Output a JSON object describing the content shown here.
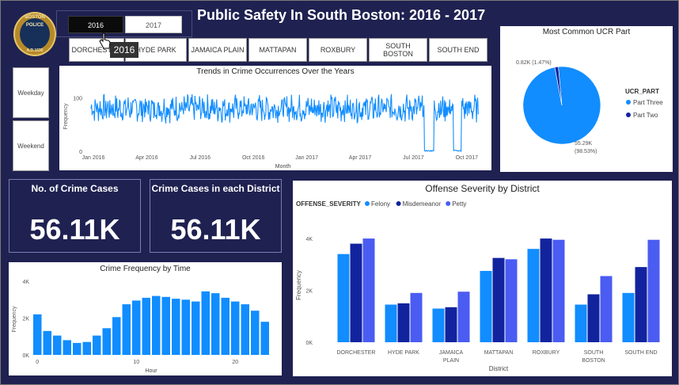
{
  "logo": {
    "top": "BOSTON",
    "mid": "POLICE",
    "date": "A.D.1630"
  },
  "title": "Public Safety In South Boston: 2016 - 2017",
  "years": {
    "selected": "2016",
    "other": "2017",
    "tooltip": "2016"
  },
  "districts": [
    "DORCHESTER",
    "HYDE PARK",
    "JAMAICA PLAIN",
    "MATTAPAN",
    "ROXBURY",
    "SOUTH BOSTON",
    "SOUTH END"
  ],
  "day_filters": [
    "Weekday",
    "Weekend"
  ],
  "cards": {
    "crime_cases": {
      "label": "No. of Crime Cases",
      "value": "56.11K"
    },
    "district_cases": {
      "label": "Crime Cases in each District",
      "value": "56.11K"
    }
  },
  "chart_data": [
    {
      "type": "line",
      "title": "Trends in Crime Occurrences Over the Years",
      "xlabel": "Month",
      "ylabel": "Frequency",
      "yticks": [
        "0",
        "100"
      ],
      "ylim": [
        0,
        130
      ],
      "xticks": [
        "Jan 2016",
        "Apr 2016",
        "Jul 2016",
        "Oct 2016",
        "Jan 2017",
        "Apr 2017",
        "Jul 2017",
        "Oct 2017"
      ],
      "series": [
        {
          "name": "Frequency",
          "color": "#118dff",
          "baseline": 80,
          "dips": [
            {
              "from": 0.86,
              "to": 0.885,
              "value": 0
            },
            {
              "from": 0.935,
              "to": 0.955,
              "value": 0
            }
          ]
        }
      ]
    },
    {
      "type": "pie",
      "title": "Most Common UCR Part",
      "legend_title": "UCR_PART",
      "slices": [
        {
          "name": "Part Three",
          "value": 55.29,
          "label": "55.29K",
          "pct": "(98.53%)",
          "color": "#118dff"
        },
        {
          "name": "Part Two",
          "value": 0.82,
          "label": "0.82K",
          "pct": "(1.47%)",
          "color": "#12239e"
        }
      ]
    },
    {
      "type": "bar",
      "title": "Crime Frequency by Time",
      "xlabel": "Hour",
      "ylabel": "Frequency",
      "ylim": [
        0,
        4000
      ],
      "yticks": [
        "0K",
        "2K",
        "4K"
      ],
      "xticks": [
        "0",
        "10",
        "20"
      ],
      "x": [
        0,
        1,
        2,
        3,
        4,
        5,
        6,
        7,
        8,
        9,
        10,
        11,
        12,
        13,
        14,
        15,
        16,
        17,
        18,
        19,
        20,
        21,
        22,
        23
      ],
      "values": [
        2200,
        1300,
        1050,
        800,
        650,
        700,
        1050,
        1450,
        2050,
        2750,
        2950,
        3100,
        3200,
        3150,
        3050,
        3000,
        2900,
        3450,
        3350,
        3100,
        2900,
        2750,
        2400,
        1800
      ],
      "color": "#118dff"
    },
    {
      "type": "bar",
      "title": "Offense Severity by District",
      "legend_title": "OFFENSE_SEVERITY",
      "xlabel": "District",
      "ylabel": "Frequency",
      "ylim": [
        0,
        4400
      ],
      "yticks": [
        "0K",
        "2K",
        "4K"
      ],
      "categories": [
        "DORCHESTER",
        "HYDE PARK",
        "JAMAICA PLAIN",
        "MATTAPAN",
        "ROXBURY",
        "SOUTH BOSTON",
        "SOUTH END"
      ],
      "series": [
        {
          "name": "Felony",
          "color": "#118dff",
          "values": [
            3400,
            1450,
            1300,
            2750,
            3600,
            1450,
            1900
          ]
        },
        {
          "name": "Misdemeanor",
          "color": "#12239e",
          "values": [
            3800,
            1500,
            1350,
            3250,
            4000,
            1850,
            2900
          ]
        },
        {
          "name": "Petty",
          "color": "#4a5cf2",
          "values": [
            4000,
            1900,
            1950,
            3200,
            3950,
            2550,
            3950
          ]
        }
      ]
    }
  ]
}
